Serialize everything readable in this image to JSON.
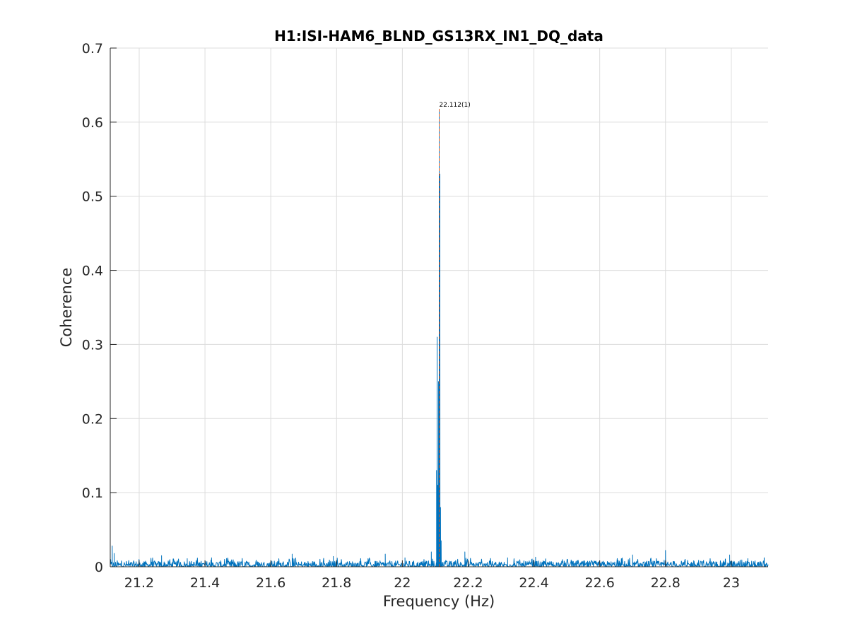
{
  "chart_data": {
    "type": "line",
    "title": "H1:ISI-HAM6_BLND_GS13RX_IN1_DQ_data",
    "xlabel": "Frequency (Hz)",
    "ylabel": "Coherence",
    "xlim": [
      21.112,
      23.112
    ],
    "ylim": [
      0,
      0.7
    ],
    "grid": true,
    "x_ticks": [
      21.2,
      21.4,
      21.6,
      21.8,
      22,
      22.2,
      22.4,
      22.6,
      22.8,
      23
    ],
    "x_tick_labels": [
      "21.2",
      "21.4",
      "21.6",
      "21.8",
      "22",
      "22.2",
      "22.4",
      "22.6",
      "22.8",
      "23"
    ],
    "y_ticks": [
      0,
      0.1,
      0.2,
      0.3,
      0.4,
      0.5,
      0.6,
      0.7
    ],
    "y_tick_labels": [
      "0",
      "0.1",
      "0.2",
      "0.3",
      "0.4",
      "0.5",
      "0.6",
      "0.7"
    ],
    "series": [
      {
        "color": "#0072BD",
        "baseline_level": 0.004,
        "noise_max": 0.012,
        "peaks": [
          {
            "x": 21.118,
            "y": 0.028
          },
          {
            "x": 21.124,
            "y": 0.018
          },
          {
            "x": 21.268,
            "y": 0.015
          },
          {
            "x": 21.346,
            "y": 0.011
          },
          {
            "x": 21.42,
            "y": 0.012
          },
          {
            "x": 21.665,
            "y": 0.017
          },
          {
            "x": 21.79,
            "y": 0.014
          },
          {
            "x": 21.948,
            "y": 0.017
          },
          {
            "x": 22.008,
            "y": 0.012
          },
          {
            "x": 22.088,
            "y": 0.02
          },
          {
            "x": 22.104,
            "y": 0.13
          },
          {
            "x": 22.106,
            "y": 0.31
          },
          {
            "x": 22.108,
            "y": 0.11
          },
          {
            "x": 22.11,
            "y": 0.25
          },
          {
            "x": 22.112,
            "y": 0.615
          },
          {
            "x": 22.114,
            "y": 0.53
          },
          {
            "x": 22.116,
            "y": 0.08
          },
          {
            "x": 22.118,
            "y": 0.035
          },
          {
            "x": 22.19,
            "y": 0.02
          },
          {
            "x": 22.32,
            "y": 0.012
          },
          {
            "x": 22.405,
            "y": 0.013
          },
          {
            "x": 22.7,
            "y": 0.016
          },
          {
            "x": 22.8,
            "y": 0.022
          },
          {
            "x": 22.995,
            "y": 0.016
          },
          {
            "x": 23.05,
            "y": 0.011
          },
          {
            "x": 23.1,
            "y": 0.012
          }
        ]
      }
    ],
    "marker": {
      "x": 22.112,
      "label": "22.112(1)",
      "color": "#D95319"
    }
  }
}
